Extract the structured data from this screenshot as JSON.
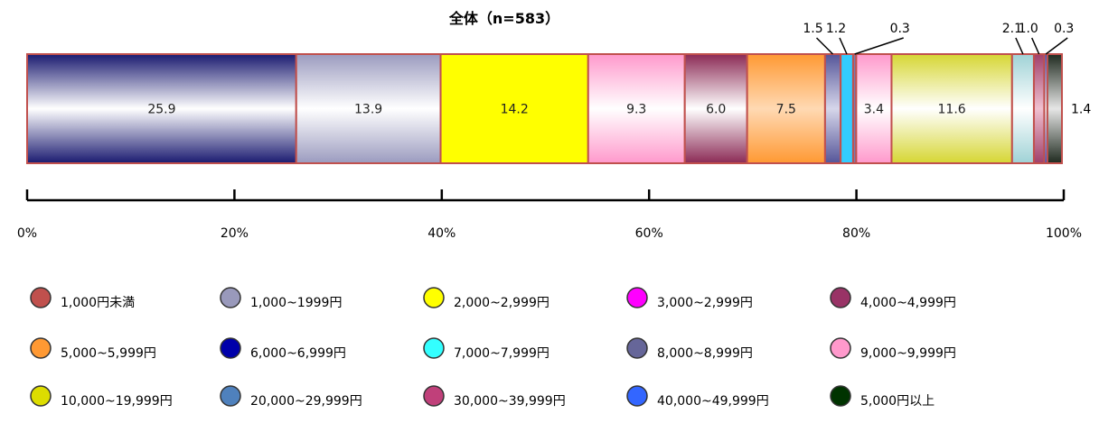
{
  "chart_data": {
    "type": "bar",
    "orientation": "horizontal",
    "stacked": true,
    "title": "全体（n=583）",
    "category": "全体",
    "xlim": [
      0,
      100
    ],
    "ticks": [
      "0%",
      "20%",
      "40%",
      "60%",
      "80%",
      "100%"
    ],
    "grid": false,
    "legend_position": "bottom",
    "series": [
      {
        "name": "1,000円未満",
        "value": 25.9,
        "label": "25.9",
        "color": "#c0504d",
        "bar_fill": "navy-gradient",
        "label_pos": "inside"
      },
      {
        "name": "1,000~1999円",
        "value": 13.9,
        "label": "13.9",
        "color": "#9999bb",
        "bar_fill": "lavender-gradient",
        "label_pos": "inside"
      },
      {
        "name": "2,000~2,999円",
        "value": 14.2,
        "label": "14.2",
        "color": "#ffff00",
        "bar_fill": "yellow",
        "label_pos": "inside"
      },
      {
        "name": "3,000~2,999円",
        "value": 9.3,
        "label": "9.3",
        "color": "#ff00ff",
        "bar_fill": "pink-gradient",
        "label_pos": "inside"
      },
      {
        "name": "4,000~4,999円",
        "value": 6.0,
        "label": "6.0",
        "color": "#993366",
        "bar_fill": "maroon-gradient",
        "label_pos": "inside"
      },
      {
        "name": "5,000~5,999円",
        "value": 7.5,
        "label": "7.5",
        "color": "#ff9933",
        "bar_fill": "orange-gradient",
        "label_pos": "inside"
      },
      {
        "name": "6,000~6,999円",
        "value": 1.5,
        "label": "1.5",
        "color": "#0000aa",
        "bar_fill": "slate-gradient",
        "label_pos": "above"
      },
      {
        "name": "7,000~7,999円",
        "value": 1.2,
        "label": "1.2",
        "color": "#33ffff",
        "bar_fill": "cyan",
        "label_pos": "above"
      },
      {
        "name": "8,000~8,999円",
        "value": 0.3,
        "label": "0.3",
        "color": "#666699",
        "bar_fill": "slate",
        "label_pos": "above"
      },
      {
        "name": "9,000~9,999円",
        "value": 3.4,
        "label": "3.4",
        "color": "#ff99cc",
        "bar_fill": "pink-gradient",
        "label_pos": "inside"
      },
      {
        "name": "10,000~19,999円",
        "value": 11.6,
        "label": "11.6",
        "color": "#dddd00",
        "bar_fill": "olive-gradient",
        "label_pos": "inside"
      },
      {
        "name": "20,000~29,999円",
        "value": 2.1,
        "label": "2.1",
        "color": "#4f81bd",
        "bar_fill": "teal-gradient",
        "label_pos": "above"
      },
      {
        "name": "30,000~39,999円",
        "value": 1.0,
        "label": "1.0",
        "color": "#c0407a",
        "bar_fill": "rose-gradient",
        "label_pos": "above"
      },
      {
        "name": "40,000~49,999円",
        "value": 0.3,
        "label": "0.3",
        "color": "#3366ff",
        "bar_fill": "blue-gradient",
        "label_pos": "above"
      },
      {
        "name": "5,000円以上",
        "value": 1.4,
        "label": "1.4",
        "color": "#003300",
        "bar_fill": "darkgreen-gradient",
        "label_pos": "right"
      }
    ]
  }
}
